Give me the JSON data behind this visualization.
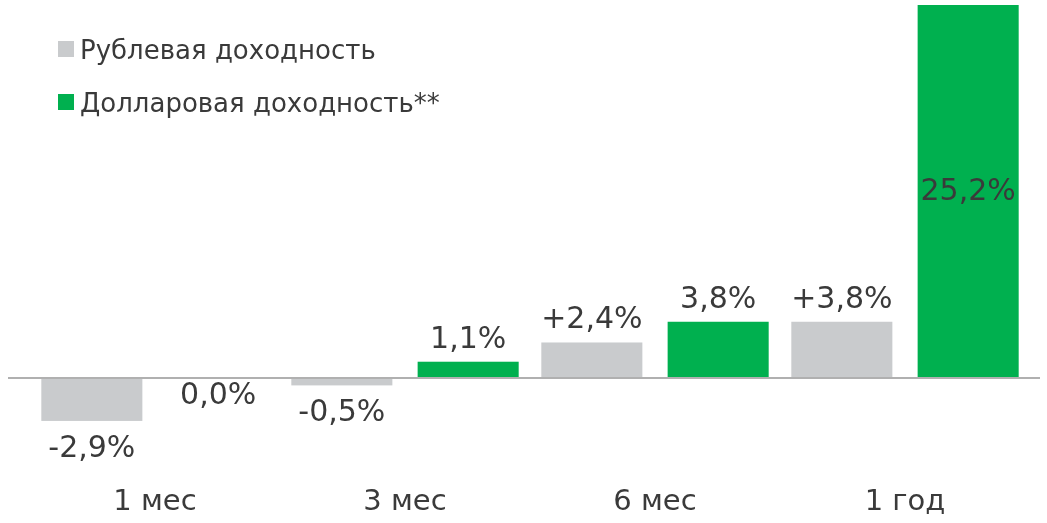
{
  "chart_data": {
    "type": "bar",
    "categories": [
      "1 мес",
      "3 мес",
      "6 мес",
      "1 год"
    ],
    "series": [
      {
        "name": "Рублевая  доходность",
        "color": "#c9cbcd",
        "values": [
          -2.9,
          -0.5,
          2.4,
          3.8
        ],
        "value_labels": [
          "-2,9%",
          "-0,5%",
          "+2,4%",
          "+3,8%"
        ]
      },
      {
        "name": "Долларовая  доходность**",
        "color": "#00b04f",
        "values": [
          0.0,
          1.1,
          3.8,
          25.2
        ],
        "value_labels": [
          "0,0%",
          "1,1%",
          "3,8%",
          "25,2%"
        ]
      }
    ],
    "legend": "top left"
  }
}
